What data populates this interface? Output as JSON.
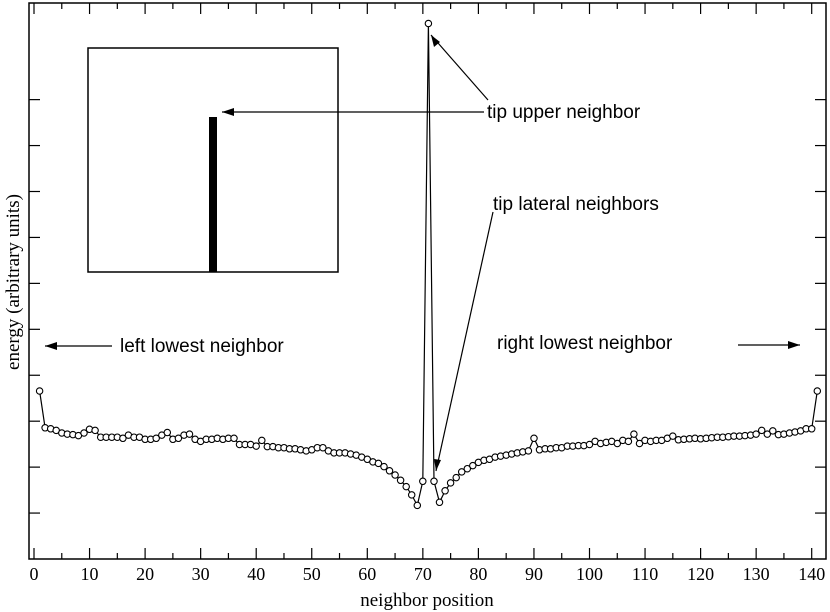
{
  "chart_data": {
    "type": "line",
    "xlabel": "neighbor position",
    "ylabel": "energy  (arbitrary units)",
    "xlim": [
      0,
      142
    ],
    "xticks": [
      "0",
      "10",
      "20",
      "30",
      "40",
      "50",
      "60",
      "70",
      "80",
      "90",
      "100",
      "110",
      "120",
      "130",
      "140"
    ],
    "y_tick_labels_shown": false,
    "series": [
      {
        "marker": "open-circle",
        "x": [
          1,
          2,
          3,
          4,
          5,
          6,
          7,
          8,
          9,
          10,
          11,
          12,
          13,
          14,
          15,
          16,
          17,
          18,
          19,
          20,
          21,
          22,
          23,
          24,
          25,
          26,
          27,
          28,
          29,
          30,
          31,
          32,
          33,
          34,
          35,
          36,
          37,
          38,
          39,
          40,
          41,
          42,
          43,
          44,
          45,
          46,
          47,
          48,
          49,
          50,
          51,
          52,
          53,
          54,
          55,
          56,
          57,
          58,
          59,
          60,
          61,
          62,
          63,
          64,
          65,
          66,
          67,
          68,
          69,
          70,
          71,
          72,
          73,
          74,
          75,
          76,
          77,
          78,
          79,
          80,
          81,
          82,
          83,
          84,
          85,
          86,
          87,
          88,
          89,
          90,
          91,
          92,
          93,
          94,
          95,
          96,
          97,
          98,
          99,
          100,
          101,
          102,
          103,
          104,
          105,
          106,
          107,
          108,
          109,
          110,
          111,
          112,
          113,
          114,
          115,
          116,
          117,
          118,
          119,
          120,
          121,
          122,
          123,
          124,
          125,
          126,
          127,
          128,
          129,
          130,
          131,
          132,
          133,
          134,
          135,
          136,
          137,
          138,
          139,
          140,
          141
        ],
        "y": [
          3.6,
          2.9,
          2.88,
          2.85,
          2.8,
          2.78,
          2.77,
          2.75,
          2.8,
          2.87,
          2.85,
          2.72,
          2.72,
          2.72,
          2.72,
          2.7,
          2.76,
          2.72,
          2.72,
          2.68,
          2.68,
          2.7,
          2.76,
          2.81,
          2.68,
          2.7,
          2.76,
          2.78,
          2.68,
          2.64,
          2.68,
          2.68,
          2.7,
          2.68,
          2.7,
          2.7,
          2.58,
          2.58,
          2.58,
          2.55,
          2.66,
          2.54,
          2.54,
          2.52,
          2.52,
          2.5,
          2.5,
          2.48,
          2.46,
          2.48,
          2.52,
          2.52,
          2.46,
          2.42,
          2.42,
          2.42,
          2.4,
          2.38,
          2.34,
          2.3,
          2.25,
          2.22,
          2.16,
          2.08,
          2.0,
          1.9,
          1.78,
          1.62,
          1.42,
          1.88,
          10.6,
          1.88,
          1.48,
          1.7,
          1.85,
          1.95,
          2.06,
          2.12,
          2.18,
          2.24,
          2.28,
          2.3,
          2.34,
          2.36,
          2.38,
          2.4,
          2.42,
          2.44,
          2.46,
          2.7,
          2.48,
          2.5,
          2.5,
          2.52,
          2.52,
          2.55,
          2.55,
          2.56,
          2.56,
          2.58,
          2.64,
          2.6,
          2.62,
          2.64,
          2.6,
          2.66,
          2.64,
          2.78,
          2.6,
          2.66,
          2.64,
          2.66,
          2.66,
          2.7,
          2.74,
          2.67,
          2.68,
          2.69,
          2.7,
          2.69,
          2.7,
          2.71,
          2.72,
          2.72,
          2.73,
          2.74,
          2.74,
          2.75,
          2.76,
          2.78,
          2.85,
          2.78,
          2.84,
          2.77,
          2.78,
          2.8,
          2.82,
          2.84,
          2.88,
          2.88,
          3.6
        ]
      }
    ],
    "annotations": [
      {
        "text": "tip upper neighbor"
      },
      {
        "text": "tip lateral neighbors"
      },
      {
        "text": "left lowest neighbor"
      },
      {
        "text": "right lowest neighbor"
      }
    ]
  }
}
